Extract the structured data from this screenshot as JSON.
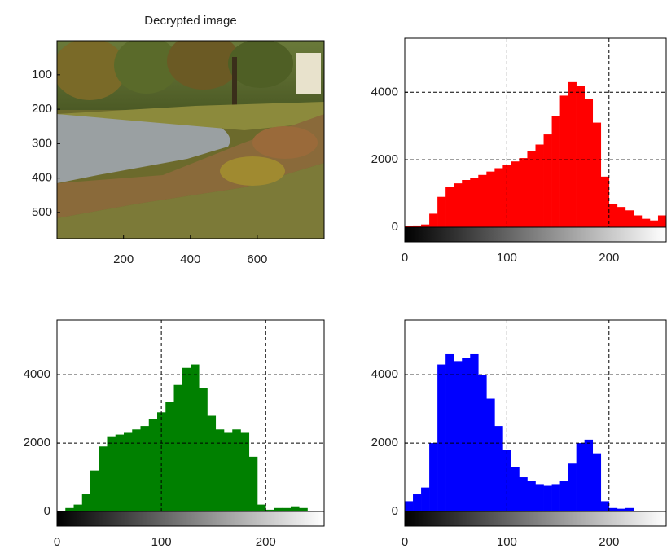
{
  "chart_data": [
    {
      "type": "image",
      "title": "Decrypted image",
      "xlim": [
        1,
        800
      ],
      "ylim": [
        1,
        576
      ],
      "xticks": [
        200,
        400,
        600
      ],
      "yticks": [
        100,
        200,
        300,
        400,
        500
      ]
    },
    {
      "type": "histogram",
      "color": "#ff0000",
      "grid": true,
      "xlim": [
        0,
        256
      ],
      "ylim": [
        0,
        5600
      ],
      "xticks": [
        0,
        100,
        200
      ],
      "yticks": [
        0,
        2000,
        4000
      ],
      "bins": [
        0,
        8,
        16,
        24,
        32,
        40,
        48,
        56,
        64,
        72,
        80,
        88,
        96,
        104,
        112,
        120,
        128,
        136,
        144,
        152,
        160,
        168,
        176,
        184,
        192,
        200,
        208,
        216,
        224,
        232,
        240,
        248,
        256
      ],
      "values": [
        40,
        50,
        80,
        400,
        900,
        1200,
        1300,
        1400,
        1450,
        1550,
        1650,
        1750,
        1850,
        1950,
        2050,
        2250,
        2450,
        2750,
        3300,
        3900,
        4300,
        4200,
        3800,
        3100,
        1500,
        700,
        600,
        500,
        350,
        250,
        200,
        350
      ]
    },
    {
      "type": "histogram",
      "color": "#008000",
      "grid": true,
      "xlim": [
        0,
        256
      ],
      "ylim": [
        0,
        5600
      ],
      "xticks": [
        0,
        100,
        200
      ],
      "yticks": [
        0,
        2000,
        4000
      ],
      "bins": [
        0,
        8,
        16,
        24,
        32,
        40,
        48,
        56,
        64,
        72,
        80,
        88,
        96,
        104,
        112,
        120,
        128,
        136,
        144,
        152,
        160,
        168,
        176,
        184,
        192,
        200,
        208,
        216,
        224,
        232,
        240,
        248,
        256
      ],
      "values": [
        0,
        100,
        200,
        500,
        1200,
        1900,
        2200,
        2250,
        2300,
        2400,
        2500,
        2700,
        2900,
        3200,
        3700,
        4200,
        4300,
        3600,
        2800,
        2400,
        2300,
        2400,
        2300,
        1600,
        200,
        50,
        100,
        100,
        150,
        100,
        0,
        0
      ]
    },
    {
      "type": "histogram",
      "color": "#0000ff",
      "grid": true,
      "xlim": [
        0,
        256
      ],
      "ylim": [
        0,
        5600
      ],
      "xticks": [
        0,
        100,
        200
      ],
      "yticks": [
        0,
        2000,
        4000
      ],
      "bins": [
        0,
        8,
        16,
        24,
        32,
        40,
        48,
        56,
        64,
        72,
        80,
        88,
        96,
        104,
        112,
        120,
        128,
        136,
        144,
        152,
        160,
        168,
        176,
        184,
        192,
        200,
        208,
        216,
        224,
        232,
        240,
        248,
        256
      ],
      "values": [
        300,
        500,
        700,
        2000,
        4300,
        4600,
        4400,
        4500,
        4600,
        4000,
        3300,
        2500,
        1800,
        1300,
        1000,
        900,
        800,
        750,
        800,
        900,
        1400,
        2000,
        2100,
        1700,
        300,
        100,
        80,
        100,
        0,
        0,
        0,
        0
      ]
    }
  ]
}
